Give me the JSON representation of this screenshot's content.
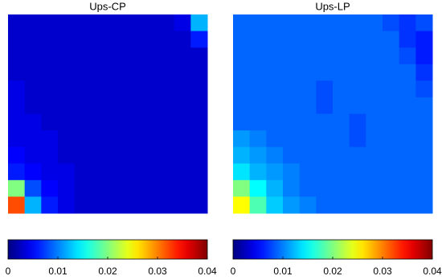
{
  "chart_data": [
    {
      "type": "heatmap",
      "title": "Ups-CP",
      "colormap": "jet",
      "zlim": [
        0,
        0.04
      ],
      "zticks": [
        0,
        0.01,
        0.02,
        0.03,
        0.04
      ],
      "values": [
        [
          0.003,
          0.003,
          0.003,
          0.003,
          0.003,
          0.003,
          0.003,
          0.003,
          0.003,
          0.003,
          0.004,
          0.012
        ],
        [
          0.003,
          0.003,
          0.003,
          0.003,
          0.003,
          0.003,
          0.003,
          0.003,
          0.003,
          0.003,
          0.003,
          0.006
        ],
        [
          0.003,
          0.003,
          0.003,
          0.003,
          0.003,
          0.003,
          0.003,
          0.003,
          0.003,
          0.003,
          0.003,
          0.003
        ],
        [
          0.003,
          0.003,
          0.003,
          0.003,
          0.003,
          0.003,
          0.003,
          0.003,
          0.003,
          0.003,
          0.003,
          0.003
        ],
        [
          0.004,
          0.003,
          0.003,
          0.003,
          0.003,
          0.003,
          0.003,
          0.003,
          0.003,
          0.003,
          0.003,
          0.003
        ],
        [
          0.004,
          0.003,
          0.003,
          0.003,
          0.003,
          0.003,
          0.003,
          0.003,
          0.003,
          0.003,
          0.003,
          0.003
        ],
        [
          0.004,
          0.004,
          0.003,
          0.003,
          0.003,
          0.003,
          0.003,
          0.003,
          0.003,
          0.003,
          0.003,
          0.003
        ],
        [
          0.004,
          0.004,
          0.004,
          0.003,
          0.003,
          0.003,
          0.003,
          0.003,
          0.003,
          0.003,
          0.003,
          0.003
        ],
        [
          0.005,
          0.004,
          0.004,
          0.003,
          0.003,
          0.003,
          0.003,
          0.003,
          0.003,
          0.003,
          0.003,
          0.003
        ],
        [
          0.006,
          0.005,
          0.004,
          0.004,
          0.003,
          0.003,
          0.003,
          0.003,
          0.003,
          0.003,
          0.003,
          0.003
        ],
        [
          0.02,
          0.008,
          0.005,
          0.004,
          0.003,
          0.003,
          0.003,
          0.003,
          0.003,
          0.003,
          0.003,
          0.003
        ],
        [
          0.032,
          0.012,
          0.006,
          0.004,
          0.003,
          0.003,
          0.003,
          0.003,
          0.003,
          0.003,
          0.003,
          0.003
        ]
      ]
    },
    {
      "type": "heatmap",
      "title": "Ups-LP",
      "colormap": "jet",
      "zlim": [
        0,
        0.04
      ],
      "zticks": [
        0,
        0.01,
        0.02,
        0.03,
        0.04
      ],
      "values": [
        [
          0.009,
          0.009,
          0.009,
          0.009,
          0.009,
          0.009,
          0.009,
          0.009,
          0.009,
          0.008,
          0.007,
          0.008
        ],
        [
          0.009,
          0.009,
          0.009,
          0.009,
          0.009,
          0.009,
          0.009,
          0.009,
          0.009,
          0.009,
          0.007,
          0.006
        ],
        [
          0.009,
          0.009,
          0.009,
          0.009,
          0.009,
          0.009,
          0.009,
          0.009,
          0.009,
          0.009,
          0.008,
          0.006
        ],
        [
          0.009,
          0.009,
          0.009,
          0.009,
          0.009,
          0.009,
          0.009,
          0.009,
          0.009,
          0.009,
          0.009,
          0.007
        ],
        [
          0.009,
          0.009,
          0.009,
          0.009,
          0.009,
          0.008,
          0.009,
          0.009,
          0.009,
          0.009,
          0.009,
          0.008
        ],
        [
          0.009,
          0.009,
          0.009,
          0.009,
          0.009,
          0.008,
          0.009,
          0.009,
          0.009,
          0.009,
          0.009,
          0.009
        ],
        [
          0.009,
          0.009,
          0.009,
          0.009,
          0.009,
          0.009,
          0.009,
          0.008,
          0.009,
          0.009,
          0.009,
          0.009
        ],
        [
          0.011,
          0.01,
          0.009,
          0.009,
          0.009,
          0.009,
          0.009,
          0.008,
          0.009,
          0.009,
          0.009,
          0.009
        ],
        [
          0.012,
          0.011,
          0.01,
          0.009,
          0.009,
          0.009,
          0.009,
          0.009,
          0.009,
          0.009,
          0.009,
          0.009
        ],
        [
          0.014,
          0.012,
          0.011,
          0.01,
          0.009,
          0.009,
          0.009,
          0.009,
          0.009,
          0.009,
          0.009,
          0.009
        ],
        [
          0.02,
          0.015,
          0.012,
          0.01,
          0.009,
          0.009,
          0.009,
          0.009,
          0.009,
          0.009,
          0.009,
          0.009
        ],
        [
          0.025,
          0.018,
          0.013,
          0.011,
          0.01,
          0.009,
          0.009,
          0.009,
          0.009,
          0.009,
          0.009,
          0.009
        ]
      ]
    }
  ]
}
